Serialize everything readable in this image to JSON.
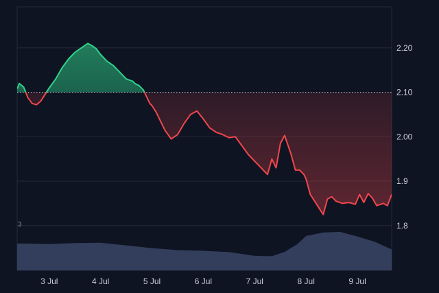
{
  "colors": {
    "background": "#0f1422",
    "up": "#2fd28a",
    "down": "#f0474c",
    "baseline": "#a8adb8",
    "grid": "#232a3a",
    "volume": "#3a4566"
  },
  "chart_data": {
    "type": "area",
    "title": "",
    "baseline": 2.1,
    "ylim": [
      1.775,
      2.28
    ],
    "yticks": [
      {
        "value": 2.2,
        "label": "2.20"
      },
      {
        "value": 2.1,
        "label": "2.10"
      },
      {
        "value": 2.0,
        "label": "2.00"
      },
      {
        "value": 1.9,
        "label": "1.9"
      },
      {
        "value": 1.8,
        "label": "1.8"
      }
    ],
    "xlim": [
      "2024-07-02T09:00",
      "2024-07-09T16:00"
    ],
    "xticks": [
      {
        "value": "2024-07-03",
        "label": "3 Jul"
      },
      {
        "value": "2024-07-04",
        "label": "4 Jul"
      },
      {
        "value": "2024-07-05",
        "label": "5 Jul"
      },
      {
        "value": "2024-07-06",
        "label": "6 Jul"
      },
      {
        "value": "2024-07-07",
        "label": "7 Jul"
      },
      {
        "value": "2024-07-08",
        "label": "8 Jul"
      },
      {
        "value": "2024-07-09",
        "label": "9 Jul"
      }
    ],
    "price": {
      "x": [
        "2024-07-02T09:00",
        "2024-07-02T10:00",
        "2024-07-02T12:00",
        "2024-07-02T14:00",
        "2024-07-02T16:00",
        "2024-07-02T18:00",
        "2024-07-02T20:00",
        "2024-07-02T22:00",
        "2024-07-03T00:00",
        "2024-07-03T03:00",
        "2024-07-03T06:00",
        "2024-07-03T09:00",
        "2024-07-03T12:00",
        "2024-07-03T15:00",
        "2024-07-03T18:00",
        "2024-07-03T20:00",
        "2024-07-03T22:00",
        "2024-07-04T00:00",
        "2024-07-04T03:00",
        "2024-07-04T06:00",
        "2024-07-04T09:00",
        "2024-07-04T12:00",
        "2024-07-04T15:00",
        "2024-07-04T16:00",
        "2024-07-04T18:00",
        "2024-07-04T20:00",
        "2024-07-04T21:00",
        "2024-07-04T23:00",
        "2024-07-05T00:00",
        "2024-07-05T02:00",
        "2024-07-05T04:00",
        "2024-07-05T06:00",
        "2024-07-05T09:00",
        "2024-07-05T12:00",
        "2024-07-05T15:00",
        "2024-07-05T18:00",
        "2024-07-05T21:00",
        "2024-07-06T00:00",
        "2024-07-06T03:00",
        "2024-07-06T06:00",
        "2024-07-06T09:00",
        "2024-07-06T12:00",
        "2024-07-06T15:00",
        "2024-07-06T18:00",
        "2024-07-06T21:00",
        "2024-07-07T00:00",
        "2024-07-07T02:00",
        "2024-07-07T04:00",
        "2024-07-07T06:00",
        "2024-07-07T08:00",
        "2024-07-07T10:00",
        "2024-07-07T12:00",
        "2024-07-07T14:00",
        "2024-07-07T17:00",
        "2024-07-07T19:00",
        "2024-07-07T21:00",
        "2024-07-07T23:00",
        "2024-07-08T00:00",
        "2024-07-08T02:00",
        "2024-07-08T04:00",
        "2024-07-08T06:00",
        "2024-07-08T08:00",
        "2024-07-08T10:00",
        "2024-07-08T12:00",
        "2024-07-08T14:00",
        "2024-07-08T17:00",
        "2024-07-08T20:00",
        "2024-07-08T23:00",
        "2024-07-09T01:00",
        "2024-07-09T03:00",
        "2024-07-09T05:00",
        "2024-07-09T07:00",
        "2024-07-09T09:00",
        "2024-07-09T12:00",
        "2024-07-09T14:00",
        "2024-07-09T16:00"
      ],
      "y": [
        2.108,
        2.12,
        2.112,
        2.088,
        2.075,
        2.072,
        2.08,
        2.095,
        2.11,
        2.13,
        2.155,
        2.175,
        2.19,
        2.2,
        2.21,
        2.205,
        2.198,
        2.185,
        2.17,
        2.16,
        2.145,
        2.13,
        2.125,
        2.12,
        2.115,
        2.105,
        2.095,
        2.075,
        2.07,
        2.055,
        2.035,
        2.015,
        1.995,
        2.005,
        2.03,
        2.05,
        2.058,
        2.04,
        2.02,
        2.01,
        2.005,
        1.998,
        2.0,
        1.98,
        1.96,
        1.945,
        1.935,
        1.925,
        1.915,
        1.95,
        1.93,
        1.985,
        2.003,
        1.96,
        1.925,
        1.925,
        1.915,
        1.905,
        1.87,
        1.855,
        1.84,
        1.825,
        1.86,
        1.865,
        1.855,
        1.85,
        1.852,
        1.848,
        1.87,
        1.852,
        1.872,
        1.862,
        1.845,
        1.85,
        1.845,
        1.87
      ]
    },
    "volume": {
      "label": "3",
      "ylim": [
        0,
        1.2
      ],
      "x": [
        "2024-07-02T09:00",
        "2024-07-03T00:00",
        "2024-07-03T12:00",
        "2024-07-04T00:00",
        "2024-07-04T12:00",
        "2024-07-05T00:00",
        "2024-07-05T12:00",
        "2024-07-06T00:00",
        "2024-07-06T12:00",
        "2024-07-07T00:00",
        "2024-07-07T08:00",
        "2024-07-07T14:00",
        "2024-07-07T20:00",
        "2024-07-08T00:00",
        "2024-07-08T08:00",
        "2024-07-08T16:00",
        "2024-07-09T00:00",
        "2024-07-09T08:00",
        "2024-07-09T16:00"
      ],
      "y": [
        0.8,
        0.78,
        0.81,
        0.82,
        0.74,
        0.66,
        0.6,
        0.58,
        0.54,
        0.43,
        0.42,
        0.55,
        0.78,
        1.02,
        1.12,
        1.14,
        1.0,
        0.85,
        0.62
      ]
    }
  }
}
